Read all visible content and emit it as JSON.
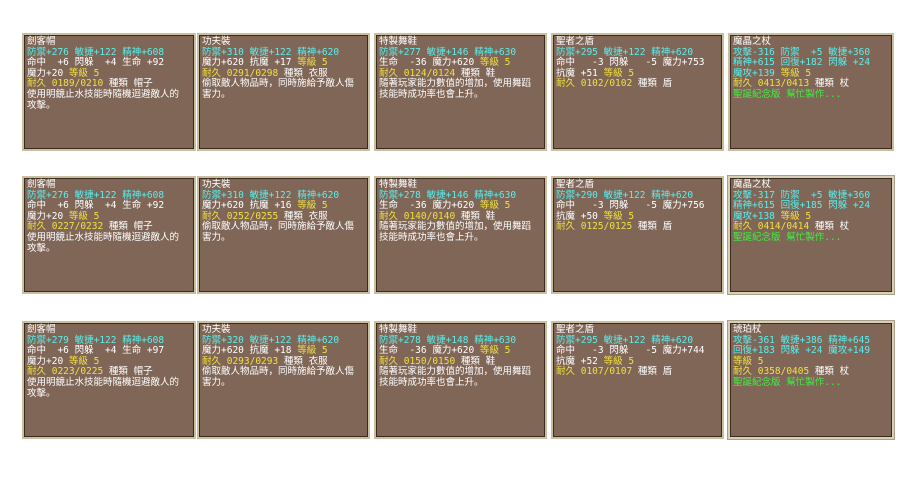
{
  "colors": {
    "panel": "#7f6657",
    "cyan": "#57f0f0",
    "white": "#ffffff",
    "yellow": "#f0e040",
    "green": "#40f040"
  },
  "cards": [
    {
      "row": 0,
      "col": 0,
      "lines": [
        [
          {
            "t": "劍客帽",
            "c": "w"
          }
        ],
        [
          {
            "t": "防禦+276 敏捷+122 精神+608",
            "c": "c"
          }
        ],
        [
          {
            "t": "命中  +6 閃躲  +4 生命 +92",
            "c": "w"
          }
        ],
        [
          {
            "t": "魔力+20 ",
            "c": "w"
          },
          {
            "t": "等級 5",
            "c": "y"
          }
        ],
        [
          {
            "t": "耐久 0189/0210 ",
            "c": "y"
          },
          {
            "t": "種類 帽子",
            "c": "w"
          }
        ],
        [
          {
            "t": "使用明鏡止水技能時隨機迴避敵人的",
            "c": "w"
          }
        ],
        [
          {
            "t": "攻擊。",
            "c": "w"
          }
        ]
      ]
    },
    {
      "row": 0,
      "col": 1,
      "lines": [
        [
          {
            "t": "功夫裝",
            "c": "w"
          }
        ],
        [
          {
            "t": "防禦+310 敏捷+122 精神+620",
            "c": "c"
          }
        ],
        [
          {
            "t": "魔力+620 抗魔 +17 ",
            "c": "w"
          },
          {
            "t": "等級 5",
            "c": "y"
          }
        ],
        [
          {
            "t": "耐久 0291/0298 ",
            "c": "y"
          },
          {
            "t": "種類 衣服",
            "c": "w"
          }
        ],
        [
          {
            "t": "偷取敵人物品時，同時施給予敵人傷",
            "c": "w"
          }
        ],
        [
          {
            "t": "害力。",
            "c": "w"
          }
        ]
      ]
    },
    {
      "row": 0,
      "col": 2,
      "lines": [
        [
          {
            "t": "特製舞鞋",
            "c": "w"
          }
        ],
        [
          {
            "t": "防禦+277 敏捷+146 精神+630",
            "c": "c"
          }
        ],
        [
          {
            "t": "生命  -36 魔力+620 ",
            "c": "w"
          },
          {
            "t": "等級 5",
            "c": "y"
          }
        ],
        [
          {
            "t": "耐久 0124/0124 ",
            "c": "y"
          },
          {
            "t": "種類 鞋",
            "c": "w"
          }
        ],
        [
          {
            "t": "隨著玩家能力數值的增加，使用舞蹈",
            "c": "w"
          }
        ],
        [
          {
            "t": "技能時成功率也會上升。",
            "c": "w"
          }
        ]
      ]
    },
    {
      "row": 0,
      "col": 3,
      "lines": [
        [
          {
            "t": "聖者之盾",
            "c": "w"
          }
        ],
        [
          {
            "t": "防禦+295 敏捷+122 精神+620",
            "c": "c"
          }
        ],
        [
          {
            "t": "命中   -3 閃躲   -5 魔力+753",
            "c": "w"
          }
        ],
        [
          {
            "t": "抗魔 +51 ",
            "c": "w"
          },
          {
            "t": "等級 5",
            "c": "y"
          }
        ],
        [
          {
            "t": "耐久 0102/0102 ",
            "c": "y"
          },
          {
            "t": "種類 盾",
            "c": "w"
          }
        ]
      ]
    },
    {
      "row": 0,
      "col": 4,
      "lines": [
        [
          {
            "t": "魔晶之杖",
            "c": "w"
          }
        ],
        [
          {
            "t": "攻擊-316 防禦  +5 敏捷+360",
            "c": "c"
          }
        ],
        [
          {
            "t": "精神+615 回復+182 閃躲 +24",
            "c": "c"
          }
        ],
        [
          {
            "t": "魔攻+139 ",
            "c": "c"
          },
          {
            "t": "等級 5",
            "c": "y"
          }
        ],
        [
          {
            "t": "耐久 0413/0413 ",
            "c": "y"
          },
          {
            "t": "種類 杖",
            "c": "w"
          }
        ],
        [
          {
            "t": "聖誕紀念版 幫忙製作...",
            "c": "g"
          }
        ]
      ]
    },
    {
      "row": 1,
      "col": 0,
      "lines": [
        [
          {
            "t": "劍客帽",
            "c": "w"
          }
        ],
        [
          {
            "t": "防禦+276 敏捷+122 精神+608",
            "c": "c"
          }
        ],
        [
          {
            "t": "命中  +6 閃躲  +4 生命 +92",
            "c": "w"
          }
        ],
        [
          {
            "t": "魔力+20 ",
            "c": "w"
          },
          {
            "t": "等級 5",
            "c": "y"
          }
        ],
        [
          {
            "t": "耐久 0227/0232 ",
            "c": "y"
          },
          {
            "t": "種類 帽子",
            "c": "w"
          }
        ],
        [
          {
            "t": "使用明鏡止水技能時隨機迴避敵人的",
            "c": "w"
          }
        ],
        [
          {
            "t": "攻擊。",
            "c": "w"
          }
        ]
      ]
    },
    {
      "row": 1,
      "col": 1,
      "lines": [
        [
          {
            "t": "功夫裝",
            "c": "w"
          }
        ],
        [
          {
            "t": "防禦+310 敏捷+122 精神+620",
            "c": "c"
          }
        ],
        [
          {
            "t": "魔力+620 抗魔 +16 ",
            "c": "w"
          },
          {
            "t": "等級 5",
            "c": "y"
          }
        ],
        [
          {
            "t": "耐久 0252/0255 ",
            "c": "y"
          },
          {
            "t": "種類 衣服",
            "c": "w"
          }
        ],
        [
          {
            "t": "偷取敵人物品時，同時施給予敵人傷",
            "c": "w"
          }
        ],
        [
          {
            "t": "害力。",
            "c": "w"
          }
        ]
      ]
    },
    {
      "row": 1,
      "col": 2,
      "lines": [
        [
          {
            "t": "特製舞鞋",
            "c": "w"
          }
        ],
        [
          {
            "t": "防禦+278 敏捷+146 精神+630",
            "c": "c"
          }
        ],
        [
          {
            "t": "生命  -36 魔力+620 ",
            "c": "w"
          },
          {
            "t": "等級 5",
            "c": "y"
          }
        ],
        [
          {
            "t": "耐久 0140/0140 ",
            "c": "y"
          },
          {
            "t": "種類 鞋",
            "c": "w"
          }
        ],
        [
          {
            "t": "隨著玩家能力數值的增加，使用舞蹈",
            "c": "w"
          }
        ],
        [
          {
            "t": "技能時成功率也會上升。",
            "c": "w"
          }
        ]
      ]
    },
    {
      "row": 1,
      "col": 3,
      "lines": [
        [
          {
            "t": "聖者之盾",
            "c": "w"
          }
        ],
        [
          {
            "t": "防禦+290 敏捷+122 精神+620",
            "c": "c"
          }
        ],
        [
          {
            "t": "命中   -3 閃躲   -5 魔力+756",
            "c": "w"
          }
        ],
        [
          {
            "t": "抗魔 +50 ",
            "c": "w"
          },
          {
            "t": "等級 5",
            "c": "y"
          }
        ],
        [
          {
            "t": "耐久 0125/0125 ",
            "c": "y"
          },
          {
            "t": "種類 盾",
            "c": "w"
          }
        ]
      ]
    },
    {
      "row": 1,
      "col": 4,
      "lines": [
        [
          {
            "t": "魔晶之杖",
            "c": "w"
          }
        ],
        [
          {
            "t": "攻擊-317 防禦  +5 敏捷+360",
            "c": "c"
          }
        ],
        [
          {
            "t": "精神+615 回復+185 閃躲 +24",
            "c": "c"
          }
        ],
        [
          {
            "t": "魔攻+138 ",
            "c": "c"
          },
          {
            "t": "等級 5",
            "c": "y"
          }
        ],
        [
          {
            "t": "耐久 0414/0414 ",
            "c": "y"
          },
          {
            "t": "種類 杖",
            "c": "w"
          }
        ],
        [
          {
            "t": "聖誕紀念版 幫忙製作...",
            "c": "g"
          }
        ]
      ]
    },
    {
      "row": 2,
      "col": 0,
      "lines": [
        [
          {
            "t": "劍客帽",
            "c": "w"
          }
        ],
        [
          {
            "t": "防禦+279 敏捷+122 精神+608",
            "c": "c"
          }
        ],
        [
          {
            "t": "命中  +6 閃躲  +4 生命 +97",
            "c": "w"
          }
        ],
        [
          {
            "t": "魔力+20 ",
            "c": "w"
          },
          {
            "t": "等級 5",
            "c": "y"
          }
        ],
        [
          {
            "t": "耐久 0223/0225 ",
            "c": "y"
          },
          {
            "t": "種類 帽子",
            "c": "w"
          }
        ],
        [
          {
            "t": "使用明鏡止水技能時隨機迴避敵人的",
            "c": "w"
          }
        ],
        [
          {
            "t": "攻擊。",
            "c": "w"
          }
        ]
      ]
    },
    {
      "row": 2,
      "col": 1,
      "lines": [
        [
          {
            "t": "功夫裝",
            "c": "w"
          }
        ],
        [
          {
            "t": "防禦+320 敏捷+122 精神+620",
            "c": "c"
          }
        ],
        [
          {
            "t": "魔力+620 抗魔 +18 ",
            "c": "w"
          },
          {
            "t": "等級 5",
            "c": "y"
          }
        ],
        [
          {
            "t": "耐久 0293/0293 ",
            "c": "y"
          },
          {
            "t": "種類 衣服",
            "c": "w"
          }
        ],
        [
          {
            "t": "偷取敵人物品時，同時施給予敵人傷",
            "c": "w"
          }
        ],
        [
          {
            "t": "害力。",
            "c": "w"
          }
        ]
      ]
    },
    {
      "row": 2,
      "col": 2,
      "lines": [
        [
          {
            "t": "特製舞鞋",
            "c": "w"
          }
        ],
        [
          {
            "t": "防禦+278 敏捷+148 精神+630",
            "c": "c"
          }
        ],
        [
          {
            "t": "生命  -36 魔力+620 ",
            "c": "w"
          },
          {
            "t": "等級 5",
            "c": "y"
          }
        ],
        [
          {
            "t": "耐久 0150/0150 ",
            "c": "y"
          },
          {
            "t": "種類 鞋",
            "c": "w"
          }
        ],
        [
          {
            "t": "隨著玩家能力數值的增加，使用舞蹈",
            "c": "w"
          }
        ],
        [
          {
            "t": "技能時成功率也會上升。",
            "c": "w"
          }
        ]
      ]
    },
    {
      "row": 2,
      "col": 3,
      "lines": [
        [
          {
            "t": "聖者之盾",
            "c": "w"
          }
        ],
        [
          {
            "t": "防禦+295 敏捷+122 精神+620",
            "c": "c"
          }
        ],
        [
          {
            "t": "命中   -3 閃躲   -5 魔力+744",
            "c": "w"
          }
        ],
        [
          {
            "t": "抗魔 +52 ",
            "c": "w"
          },
          {
            "t": "等級 5",
            "c": "y"
          }
        ],
        [
          {
            "t": "耐久 0107/0107 ",
            "c": "y"
          },
          {
            "t": "種類 盾",
            "c": "w"
          }
        ]
      ]
    },
    {
      "row": 2,
      "col": 4,
      "lines": [
        [
          {
            "t": "琥珀杖",
            "c": "w"
          }
        ],
        [
          {
            "t": "攻擊-361 敏捷+386 精神+645",
            "c": "c"
          }
        ],
        [
          {
            "t": "回復+183 閃躲 +24 魔攻+149",
            "c": "c"
          }
        ],
        [
          {
            "t": "等級 5",
            "c": "y"
          }
        ],
        [
          {
            "t": "耐久 0358/0405 ",
            "c": "y"
          },
          {
            "t": "種類 杖",
            "c": "w"
          }
        ],
        [
          {
            "t": "聖誕紀念版 幫忙製作...",
            "c": "g"
          }
        ]
      ]
    }
  ]
}
